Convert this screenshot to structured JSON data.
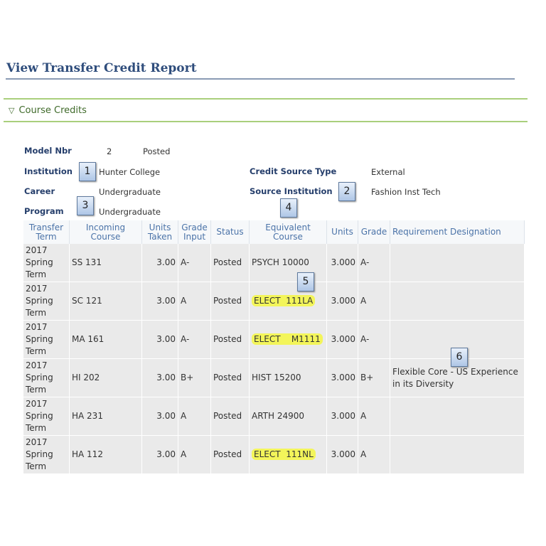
{
  "page": {
    "title": "View Transfer Credit Report"
  },
  "section": {
    "title": "Course Credits"
  },
  "fields": {
    "model_nbr_label": "Model Nbr",
    "model_nbr": "2",
    "model_status": "Posted",
    "institution_label": "Institution",
    "institution": "Hunter College",
    "career_label": "Career",
    "career": "Undergraduate",
    "program_label": "Program",
    "program": "Undergraduate",
    "credit_source_type_label": "Credit Source Type",
    "credit_source_type": "External",
    "source_institution_label": "Source Institution",
    "source_institution": "Fashion Inst Tech"
  },
  "callouts": [
    "1",
    "2",
    "3",
    "4",
    "5",
    "6"
  ],
  "highlight_color": "#f3f55a",
  "table": {
    "headers": [
      "Transfer Term",
      "Incoming Course",
      "Units Taken",
      "Grade Input",
      "Status",
      "Equivalent Course",
      "Units",
      "Grade",
      "Requirement Designation"
    ],
    "rows": [
      [
        "2017 Spring Term",
        "SS 131",
        "3.00",
        "A-",
        "Posted",
        "PSYCH 10000",
        "3.000",
        "A-",
        ""
      ],
      [
        "2017 Spring Term",
        "SC 121",
        "3.00",
        "A",
        "Posted",
        "ELECT  111LA",
        "3.000",
        "A",
        ""
      ],
      [
        "2017 Spring Term",
        "MA 161",
        "3.00",
        "A-",
        "Posted",
        "ELECT    M1111",
        "3.000",
        "A-",
        ""
      ],
      [
        "2017 Spring Term",
        "HI 202",
        "3.00",
        "B+",
        "Posted",
        "HIST 15200",
        "3.000",
        "B+",
        "Flexible Core - US Experience in its Diversity"
      ],
      [
        "2017 Spring Term",
        "HA 231",
        "3.00",
        "A",
        "Posted",
        "ARTH 24900",
        "3.000",
        "A",
        ""
      ],
      [
        "2017 Spring Term",
        "HA 112",
        "3.00",
        "A",
        "Posted",
        "ELECT  111NL",
        "3.000",
        "A",
        ""
      ]
    ],
    "highlighted_rows": [
      1,
      2,
      5
    ]
  }
}
